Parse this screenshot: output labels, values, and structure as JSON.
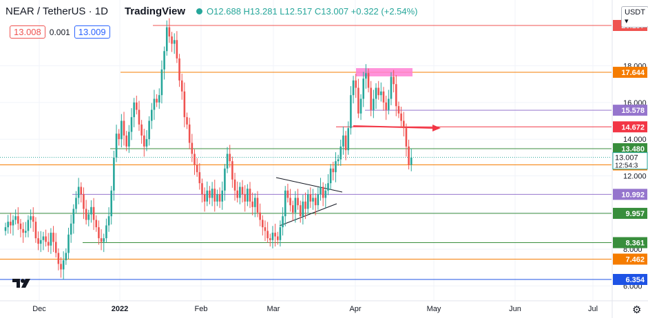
{
  "header": {
    "symbol": "NEAR / TetherUS · 1D",
    "brand": "TradingView",
    "ohlc_label": "O12.688 H13.281 L12.517 C13.007 +0.322 (+2.54%)"
  },
  "quote": {
    "bid": "13.008",
    "spread": "0.001",
    "ask": "13.009"
  },
  "currency_button": "USDT",
  "colors": {
    "up": "#26a69a",
    "down": "#ef5350",
    "grid": "#f0f3fa"
  },
  "chart_data": {
    "type": "candlestick",
    "title": "NEAR / TetherUS · 1D",
    "xlabel": "",
    "ylabel": "",
    "x_ticks": [
      "Dec",
      "2022",
      "Feb",
      "Mar",
      "Apr",
      "May",
      "Jun",
      "Jul"
    ],
    "y_ticks": [
      "6.000",
      "8.000",
      "10.000",
      "12.000",
      "14.000",
      "16.000",
      "18.000"
    ],
    "ylim": [
      5.6,
      21.0
    ],
    "last_price": 13.007,
    "countdown": "12:54:3",
    "horizontal_levels": [
      {
        "value": 20.197,
        "label": "20.197",
        "color": "#ef5350"
      },
      {
        "value": 17.644,
        "label": "17.644",
        "color": "#f57c00"
      },
      {
        "value": 15.578,
        "label": "15.578",
        "color": "#9575cd"
      },
      {
        "value": 14.672,
        "label": "14.672",
        "color": "#f23645"
      },
      {
        "value": 13.48,
        "label": "13.480",
        "color": "#388e3c"
      },
      {
        "value": 12.599,
        "label": "12.599",
        "color": "#f57c00"
      },
      {
        "value": 10.992,
        "label": "10.992",
        "color": "#9575cd"
      },
      {
        "value": 9.957,
        "label": "9.957",
        "color": "#388e3c"
      },
      {
        "value": 8.361,
        "label": "8.361",
        "color": "#388e3c"
      },
      {
        "value": 7.462,
        "label": "7.462",
        "color": "#f57c00"
      },
      {
        "value": 6.354,
        "label": "6.354",
        "color": "#1e53e5"
      }
    ],
    "candles_close": [
      9.2,
      9.5,
      9.3,
      9.6,
      9.8,
      9.4,
      9.1,
      8.9,
      9.0,
      9.6,
      9.8,
      9.5,
      8.6,
      8.3,
      8.5,
      8.7,
      8.4,
      8.2,
      8.9,
      8.4,
      7.8,
      7.2,
      6.9,
      7.4,
      7.8,
      8.8,
      9.4,
      10.2,
      10.8,
      11.4,
      11.0,
      10.2,
      9.6,
      9.9,
      10.3,
      9.6,
      9.2,
      8.6,
      8.4,
      8.6,
      9.3,
      9.8,
      11.2,
      13.0,
      14.3,
      14.0,
      15.0,
      14.2,
      13.6,
      14.4,
      15.2,
      16.0,
      15.6,
      14.8,
      14.2,
      13.6,
      14.0,
      15.0,
      15.6,
      16.2,
      16.0,
      16.4,
      17.8,
      18.8,
      20.1,
      19.6,
      19.2,
      19.4,
      18.4,
      17.2,
      16.6,
      15.2,
      14.8,
      13.8,
      13.2,
      12.6,
      12.2,
      11.6,
      11.0,
      10.6,
      11.2,
      10.8,
      11.3,
      10.6,
      11.0,
      10.6,
      11.2,
      12.4,
      13.2,
      12.8,
      11.8,
      11.2,
      10.8,
      11.4,
      11.0,
      10.6,
      11.3,
      10.6,
      10.3,
      10.8,
      10.0,
      9.6,
      9.2,
      9.0,
      8.6,
      8.5,
      8.9,
      8.7,
      8.5,
      9.2,
      9.8,
      11.2,
      10.8,
      10.4,
      10.0,
      10.8,
      10.4,
      9.8,
      10.6,
      10.2,
      11.0,
      10.6,
      10.8,
      10.4,
      11.0,
      11.4,
      10.8,
      11.2,
      11.6,
      12.4,
      12.2,
      12.8,
      12.9,
      13.6,
      14.2,
      13.4,
      14.6,
      16.4,
      17.2,
      16.8,
      15.4,
      16.2,
      17.3,
      17.6,
      16.8,
      15.6,
      16.2,
      16.8,
      16.4,
      16.6,
      16.0,
      15.6,
      16.2,
      17.4,
      17.0,
      15.8,
      15.4,
      15.0,
      14.6,
      13.6,
      12.6,
      13.0
    ]
  }
}
